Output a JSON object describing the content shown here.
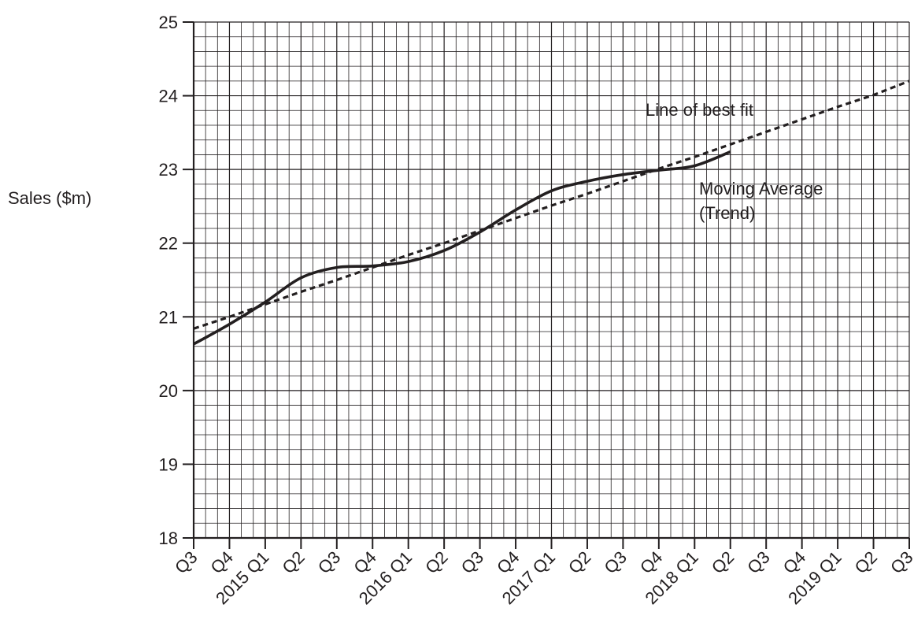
{
  "chart_data": {
    "type": "line",
    "ylabel": "Sales ($m)",
    "xlabel": "",
    "ylim": [
      18,
      25
    ],
    "y_ticks": [
      18,
      19,
      20,
      21,
      22,
      23,
      24,
      25
    ],
    "y_minor_step": 0.2,
    "x_subdivisions": 3,
    "grid": true,
    "categories": [
      "Q3",
      "Q4",
      "2015 Q1",
      "Q2",
      "Q3",
      "Q4",
      "2016 Q1",
      "Q2",
      "Q3",
      "Q4",
      "2017 Q1",
      "Q2",
      "Q3",
      "Q4",
      "2018 Q1",
      "Q2",
      "Q3",
      "Q4",
      "2019 Q1",
      "Q2",
      "Q3"
    ],
    "series": [
      {
        "name": "Moving Average (Trend)",
        "style": "solid",
        "color": "#231f20",
        "values": [
          20.63,
          20.9,
          21.2,
          21.53,
          21.67,
          21.69,
          21.75,
          21.9,
          22.15,
          22.45,
          22.71,
          22.84,
          22.93,
          22.99,
          23.05,
          23.24,
          null,
          null,
          null,
          null,
          null
        ]
      },
      {
        "name": "Line of best fit",
        "style": "dashed",
        "color": "#231f20",
        "values": [
          20.84,
          21.0,
          21.17,
          21.34,
          21.5,
          21.67,
          21.84,
          22.0,
          22.17,
          22.34,
          22.51,
          22.67,
          22.84,
          23.01,
          23.17,
          23.34,
          23.51,
          23.68,
          23.85,
          24.01,
          24.2
        ]
      }
    ],
    "annotations": [
      {
        "text": "Line of best fit"
      },
      {
        "text": "Moving Average"
      },
      {
        "text": "(Trend)"
      }
    ]
  }
}
